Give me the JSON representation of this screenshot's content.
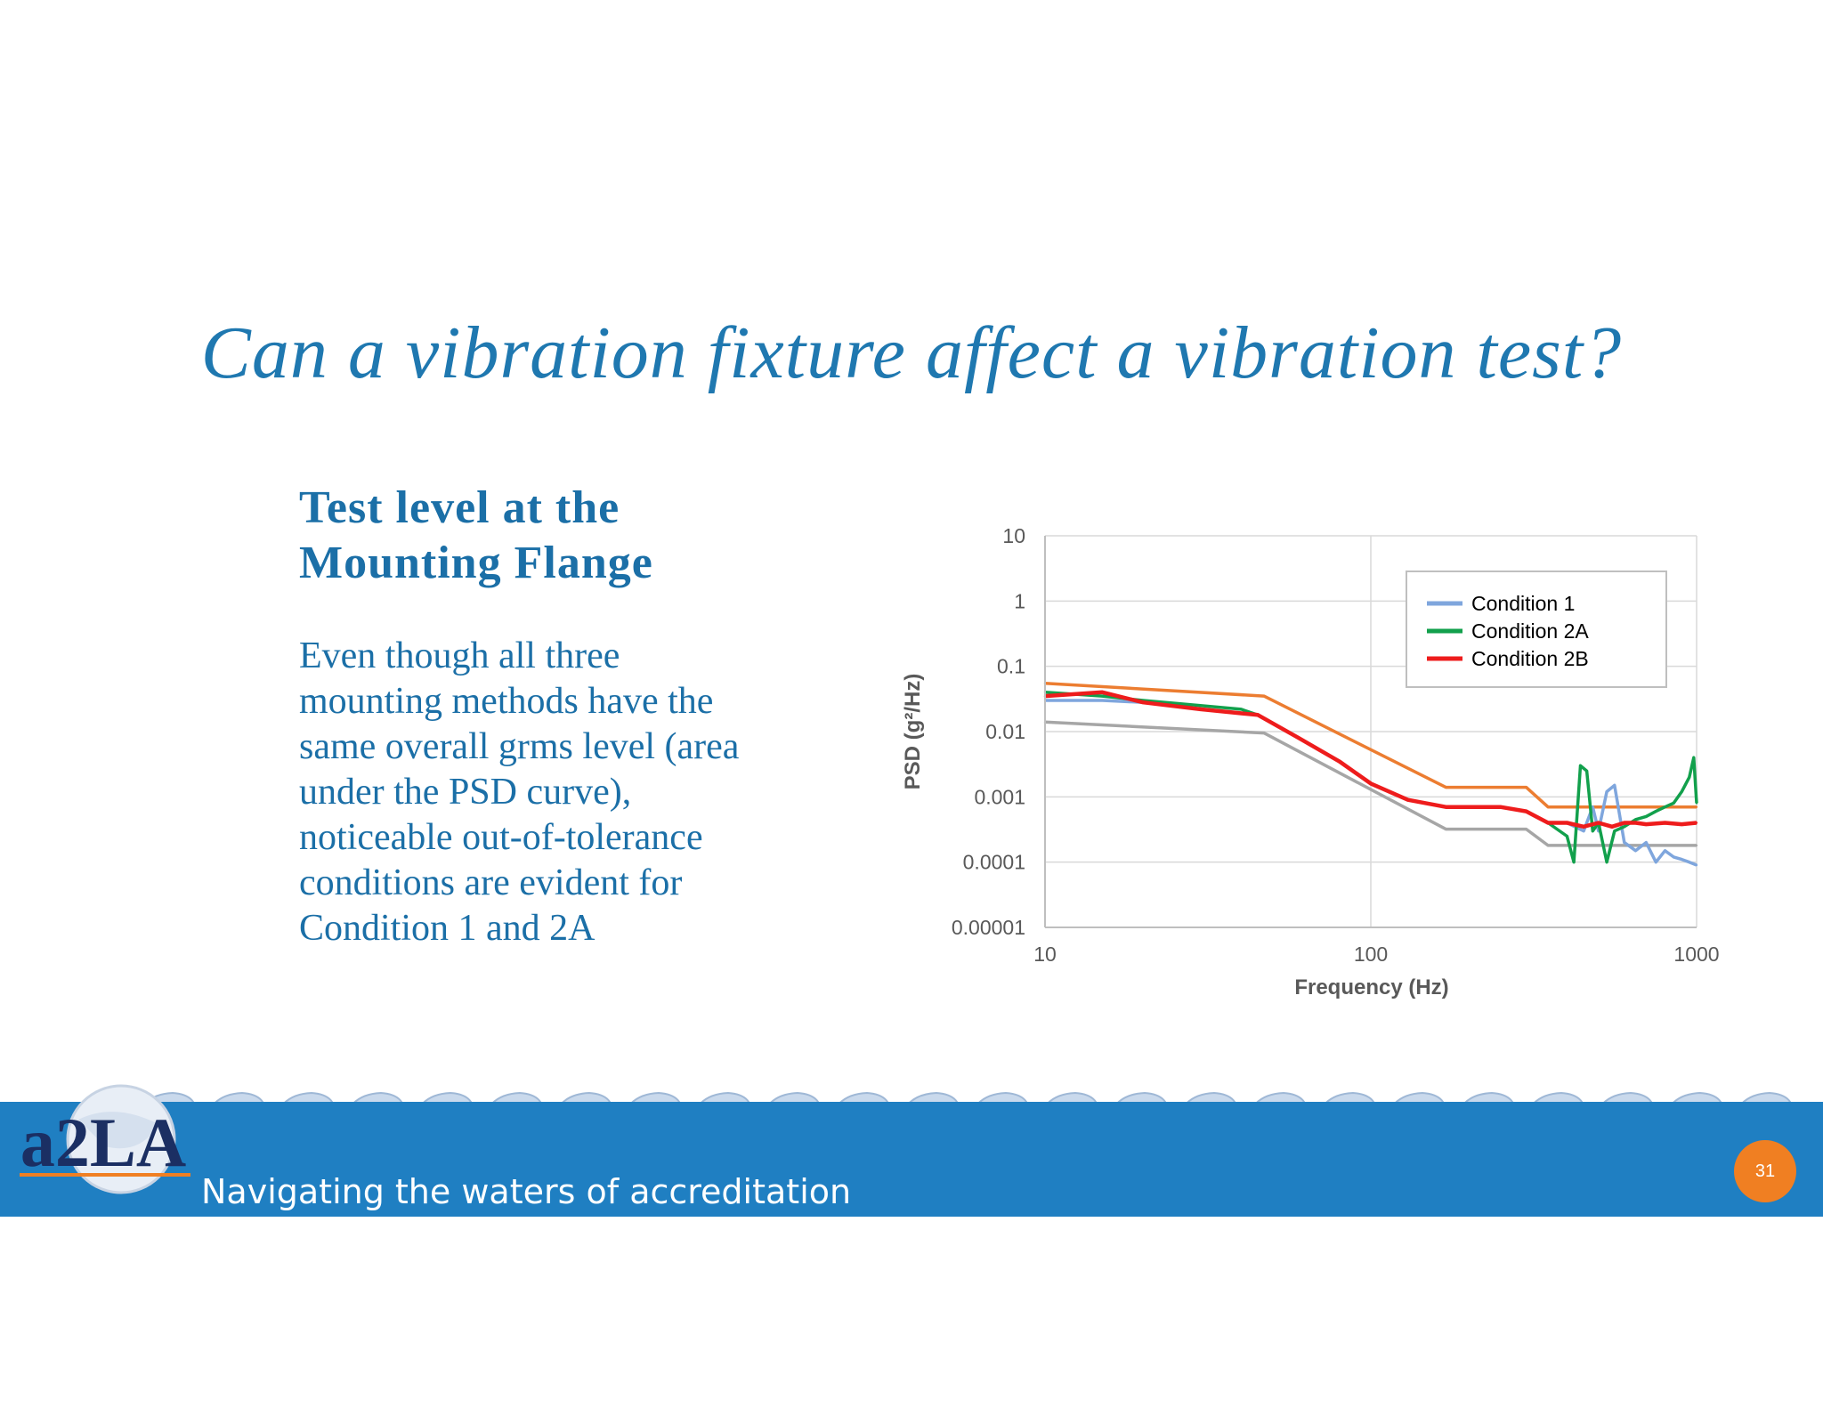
{
  "slide": {
    "title": "Can a vibration fixture affect a vibration test?",
    "subheading_line1": "Test level at the",
    "subheading_line2": "Mounting Flange",
    "body_lines": [
      "Even though all three",
      "mounting methods have the",
      "same overall grms level (area",
      "under the PSD curve),",
      "noticeable out-of-tolerance",
      "conditions are evident for",
      "Condition 1 and 2A"
    ],
    "footer_tagline": "Navigating the waters of accreditation",
    "page_number": "31",
    "logo_text": "a2LA"
  },
  "colors": {
    "title": "#1f78b0",
    "footer_band": "#1f7fc2",
    "page_badge": "#f07f22",
    "condition_1": "#7fa6dd",
    "condition_2a": "#12a04c",
    "condition_2b": "#ee1c1c",
    "upper_tolerance": "#ec7d31",
    "lower_tolerance": "#a6a6a6"
  },
  "chart_data": {
    "type": "line",
    "xlabel": "Frequency (Hz)",
    "ylabel": "PSD (g²/Hz)",
    "x_scale": "log",
    "y_scale": "log",
    "xlim": [
      10,
      1000
    ],
    "ylim": [
      1e-05,
      10
    ],
    "x_ticks": [
      "10",
      "100",
      "1000"
    ],
    "y_ticks": [
      "0.00001",
      "0.0001",
      "0.001",
      "0.01",
      "0.1",
      "1",
      "10"
    ],
    "grid": true,
    "legend_position": "top-right",
    "legend": [
      "Condition 1",
      "Condition 2A",
      "Condition 2B"
    ],
    "series": [
      {
        "name": "Condition 1",
        "x": [
          10,
          15,
          20,
          30,
          45,
          60,
          80,
          100,
          130,
          170,
          200,
          250,
          300,
          350,
          400,
          450,
          480,
          500,
          530,
          560,
          600,
          650,
          700,
          750,
          800,
          850,
          900,
          950,
          1000
        ],
        "y": [
          0.03,
          0.03,
          0.028,
          0.022,
          0.018,
          0.008,
          0.0035,
          0.0016,
          0.0009,
          0.0007,
          0.0007,
          0.0007,
          0.0006,
          0.0004,
          0.0004,
          0.0003,
          0.0007,
          0.0003,
          0.0012,
          0.0015,
          0.0002,
          0.00015,
          0.0002,
          0.0001,
          0.00015,
          0.00012,
          0.00011,
          0.0001,
          9e-05
        ]
      },
      {
        "name": "Condition 2A",
        "x": [
          10,
          15,
          20,
          30,
          40,
          45,
          60,
          80,
          100,
          130,
          170,
          200,
          250,
          300,
          350,
          400,
          420,
          440,
          460,
          480,
          500,
          530,
          560,
          600,
          650,
          700,
          750,
          800,
          850,
          900,
          950,
          980,
          1000
        ],
        "y": [
          0.04,
          0.035,
          0.03,
          0.025,
          0.022,
          0.018,
          0.008,
          0.0035,
          0.0016,
          0.0009,
          0.0007,
          0.0007,
          0.0007,
          0.0006,
          0.0004,
          0.00025,
          0.0001,
          0.003,
          0.0025,
          0.0003,
          0.0004,
          0.0001,
          0.0003,
          0.00035,
          0.00045,
          0.0005,
          0.0006,
          0.0007,
          0.0008,
          0.0012,
          0.002,
          0.004,
          0.0008
        ]
      },
      {
        "name": "Condition 2B",
        "x": [
          10,
          15,
          20,
          30,
          45,
          60,
          80,
          100,
          130,
          170,
          200,
          250,
          300,
          350,
          400,
          450,
          500,
          550,
          600,
          650,
          700,
          800,
          900,
          1000
        ],
        "y": [
          0.035,
          0.04,
          0.028,
          0.022,
          0.018,
          0.008,
          0.0035,
          0.0016,
          0.0009,
          0.0007,
          0.0007,
          0.0007,
          0.0006,
          0.0004,
          0.0004,
          0.00035,
          0.0004,
          0.00035,
          0.0004,
          0.0004,
          0.00038,
          0.0004,
          0.00038,
          0.0004
        ]
      },
      {
        "x": [
          10,
          47,
          170,
          300,
          350,
          1000
        ],
        "y": [
          0.055,
          0.035,
          0.0014,
          0.0014,
          0.0007,
          0.0007
        ]
      },
      {
        "x": [
          10,
          47,
          170,
          300,
          350,
          1000
        ],
        "y": [
          0.014,
          0.0095,
          0.00032,
          0.00032,
          0.00018,
          0.00018
        ]
      }
    ]
  }
}
